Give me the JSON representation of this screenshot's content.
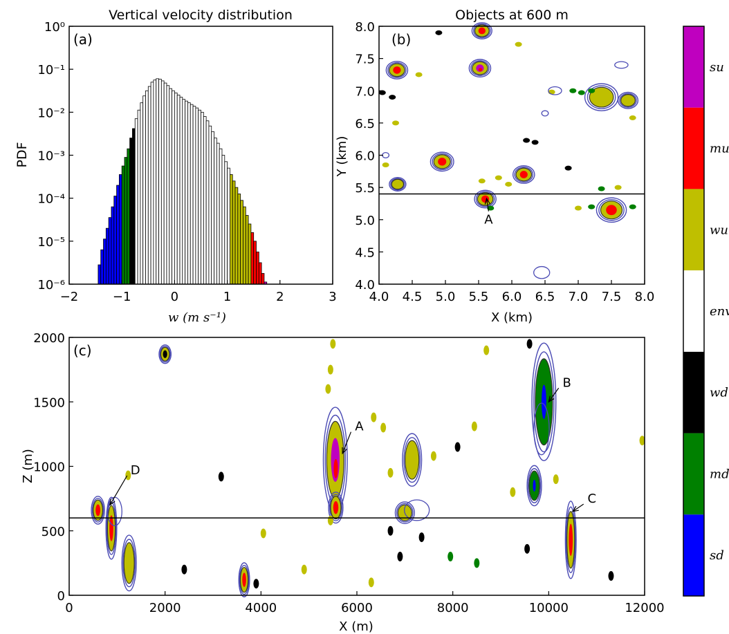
{
  "colors": {
    "sd": "#0000ff",
    "md": "#008000",
    "wd": "#000000",
    "env": "#ffffff",
    "wu": "#bfbf00",
    "mu": "#ff0000",
    "su": "#bf00bf",
    "contour": "#4b4bb4"
  },
  "chart_data": [
    {
      "id": "a",
      "type": "bar",
      "panel_label": "(a)",
      "title": "Vertical velocity distribution",
      "xlabel": "w (m s⁻¹)",
      "ylabel": "PDF",
      "xlim": [
        -2,
        3
      ],
      "ylim_log10": [
        -6,
        0
      ],
      "yscale": "log",
      "xticks": [
        "−2",
        "−1",
        "0",
        "1",
        "2",
        "3"
      ],
      "yticks": [
        "10⁰",
        "10⁻¹",
        "10⁻²",
        "10⁻³",
        "10⁻⁴",
        "10⁻⁵",
        "10⁻⁶"
      ],
      "bin_width": 0.05,
      "bin_start": -1.45,
      "bin_class_ranges": [
        {
          "class": "sd",
          "from": -1.45,
          "to": -1.0
        },
        {
          "class": "md",
          "from": -1.0,
          "to": -0.85
        },
        {
          "class": "wd",
          "from": -0.85,
          "to": -0.75
        },
        {
          "class": "env",
          "from": -0.75,
          "to": 1.05
        },
        {
          "class": "wu",
          "from": 1.05,
          "to": 1.45
        },
        {
          "class": "mu",
          "from": 1.45,
          "to": 1.7
        },
        {
          "class": "su",
          "from": 1.7,
          "to": 2.1
        }
      ],
      "log10_values": [
        -5.55,
        -5.2,
        -4.95,
        -4.7,
        -4.45,
        -4.2,
        -3.95,
        -3.7,
        -3.45,
        -3.25,
        -3.05,
        -2.85,
        -2.6,
        -2.38,
        -2.15,
        -1.95,
        -1.78,
        -1.62,
        -1.5,
        -1.4,
        -1.3,
        -1.25,
        -1.22,
        -1.23,
        -1.27,
        -1.32,
        -1.38,
        -1.45,
        -1.5,
        -1.55,
        -1.6,
        -1.65,
        -1.7,
        -1.74,
        -1.78,
        -1.82,
        -1.86,
        -1.9,
        -1.95,
        -2.0,
        -2.1,
        -2.2,
        -2.32,
        -2.45,
        -2.6,
        -2.72,
        -2.85,
        -3.0,
        -3.15,
        -3.3,
        -3.45,
        -3.6,
        -3.75,
        -3.9,
        -4.05,
        -4.2,
        -4.4,
        -4.6,
        -4.8,
        -5.0,
        -5.25,
        -5.5,
        -5.75,
        -5.95,
        -6.0,
        -6.0,
        -6.0,
        -6.0,
        -6.0,
        -6.0,
        -6.0,
        -6.0,
        -6.0
      ]
    },
    {
      "id": "b",
      "type": "map",
      "panel_label": "(b)",
      "title": "Objects at 600 m",
      "xlabel": "X (km)",
      "ylabel": "Y (km)",
      "xlim": [
        4.0,
        8.0
      ],
      "ylim": [
        4.0,
        8.0
      ],
      "xticks": [
        "4.0",
        "4.5",
        "5.0",
        "5.5",
        "6.0",
        "6.5",
        "7.0",
        "7.5",
        "8.0"
      ],
      "yticks": [
        "4.0",
        "4.5",
        "5.0",
        "5.5",
        "6.0",
        "6.5",
        "7.0",
        "7.5",
        "8.0"
      ],
      "hline_y": 5.4,
      "annotations": [
        {
          "text": "A",
          "x": 5.62,
          "y": 5.33,
          "label_x": 5.65,
          "label_y": 4.98
        }
      ],
      "objects": [
        {
          "x": 4.27,
          "y": 7.32,
          "r": 0.13,
          "core": "mu"
        },
        {
          "x": 5.52,
          "y": 7.35,
          "r": 0.13,
          "core": "su"
        },
        {
          "x": 5.55,
          "y": 7.93,
          "r": 0.12,
          "core": "mu"
        },
        {
          "x": 4.95,
          "y": 5.9,
          "r": 0.14,
          "core": "mu"
        },
        {
          "x": 6.18,
          "y": 5.7,
          "r": 0.13,
          "core": "mu"
        },
        {
          "x": 4.28,
          "y": 5.55,
          "r": 0.1,
          "core": "wu"
        },
        {
          "x": 5.6,
          "y": 5.32,
          "r": 0.13,
          "core": "mu"
        },
        {
          "x": 7.5,
          "y": 5.15,
          "r": 0.18,
          "core": "mu"
        },
        {
          "x": 7.35,
          "y": 6.9,
          "r": 0.2,
          "core": "wu"
        },
        {
          "x": 7.75,
          "y": 6.85,
          "r": 0.12,
          "core": "wu"
        }
      ]
    },
    {
      "id": "c",
      "type": "map",
      "panel_label": "(c)",
      "xlabel": "X (m)",
      "ylabel": "Z (m)",
      "xlim": [
        0,
        12000
      ],
      "ylim": [
        0,
        2000
      ],
      "xticks": [
        "0",
        "2000",
        "4000",
        "6000",
        "8000",
        "10000",
        "12000"
      ],
      "yticks": [
        "0",
        "500",
        "1000",
        "1500",
        "2000"
      ],
      "hline_z": 600,
      "annotations": [
        {
          "text": "A",
          "x": 5700,
          "z": 1100,
          "label_x": 6050,
          "label_z": 1310
        },
        {
          "text": "B",
          "x": 10000,
          "z": 1500,
          "label_x": 10380,
          "label_z": 1650
        },
        {
          "text": "C",
          "x": 10500,
          "z": 650,
          "label_x": 10900,
          "label_z": 750
        },
        {
          "text": "D",
          "x": 850,
          "z": 700,
          "label_x": 1380,
          "label_z": 970
        }
      ],
      "objects": [
        {
          "x": 600,
          "z": 660,
          "rx": 110,
          "rz": 90,
          "core": "mu"
        },
        {
          "x": 880,
          "z": 520,
          "rx": 90,
          "rz": 200,
          "core": "mu"
        },
        {
          "x": 1250,
          "z": 250,
          "rx": 120,
          "rz": 180,
          "core": "wu"
        },
        {
          "x": 5550,
          "z": 1050,
          "rx": 200,
          "rz": 340,
          "core": "su"
        },
        {
          "x": 5560,
          "z": 680,
          "rx": 120,
          "rz": 100,
          "core": "mu"
        },
        {
          "x": 7150,
          "z": 1050,
          "rx": 160,
          "rz": 170,
          "core": "wu"
        },
        {
          "x": 9900,
          "z": 1500,
          "rx": 200,
          "rz": 380,
          "core": "md"
        },
        {
          "x": 9700,
          "z": 850,
          "rx": 120,
          "rz": 130,
          "core": "md"
        },
        {
          "x": 10460,
          "z": 430,
          "rx": 90,
          "rz": 250,
          "core": "mu"
        },
        {
          "x": 3650,
          "z": 120,
          "rx": 90,
          "rz": 110,
          "core": "mu"
        },
        {
          "x": 2000,
          "z": 1870,
          "rx": 100,
          "rz": 60,
          "core": "wd"
        },
        {
          "x": 7000,
          "z": 640,
          "rx": 160,
          "rz": 70,
          "core": "wu"
        }
      ]
    },
    {
      "id": "colorbar",
      "type": "colorbar",
      "classes": [
        "su",
        "mu",
        "wu",
        "env",
        "wd",
        "md",
        "sd"
      ],
      "labels": [
        "su",
        "mu",
        "wu",
        "env",
        "wd",
        "md",
        "sd"
      ]
    }
  ]
}
